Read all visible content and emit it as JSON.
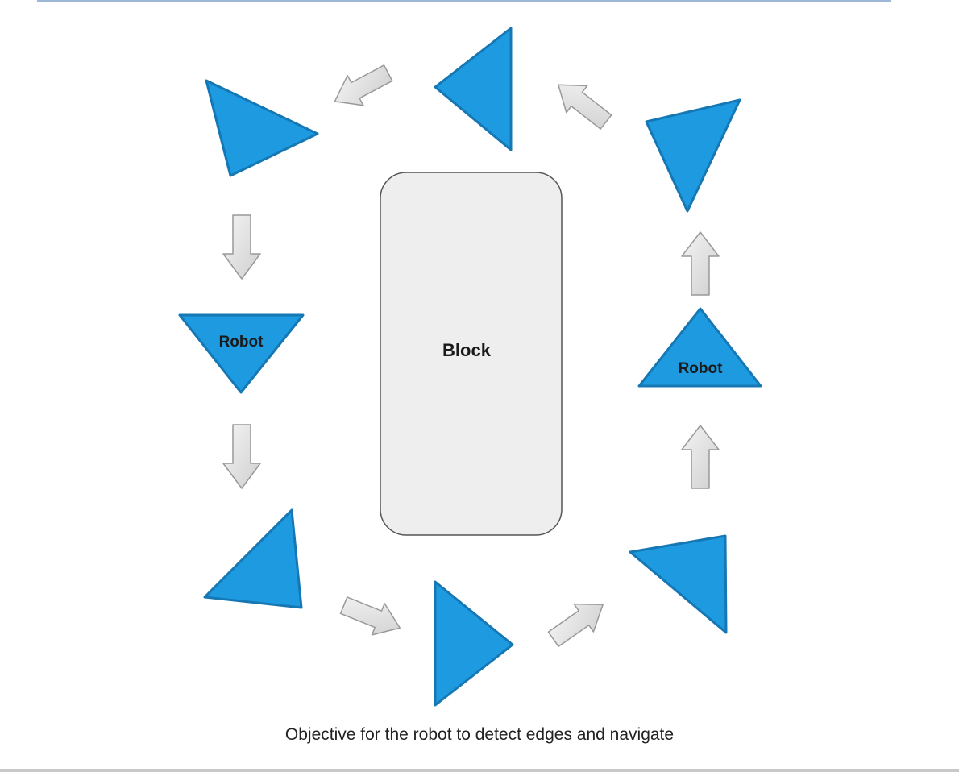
{
  "diagram": {
    "block_label": "Block",
    "robot_labels": [
      "Robot",
      "Robot"
    ],
    "caption": "Objective for the robot to detect edges and navigate",
    "colors": {
      "robot_fill": "#1e9be0",
      "robot_stroke": "#1577b3",
      "block_fill": "#eeeeee",
      "block_stroke": "#555555",
      "arrow_fill": "#e2e2e2",
      "arrow_stroke": "#999999",
      "label_color": "#1a1a1a"
    }
  }
}
